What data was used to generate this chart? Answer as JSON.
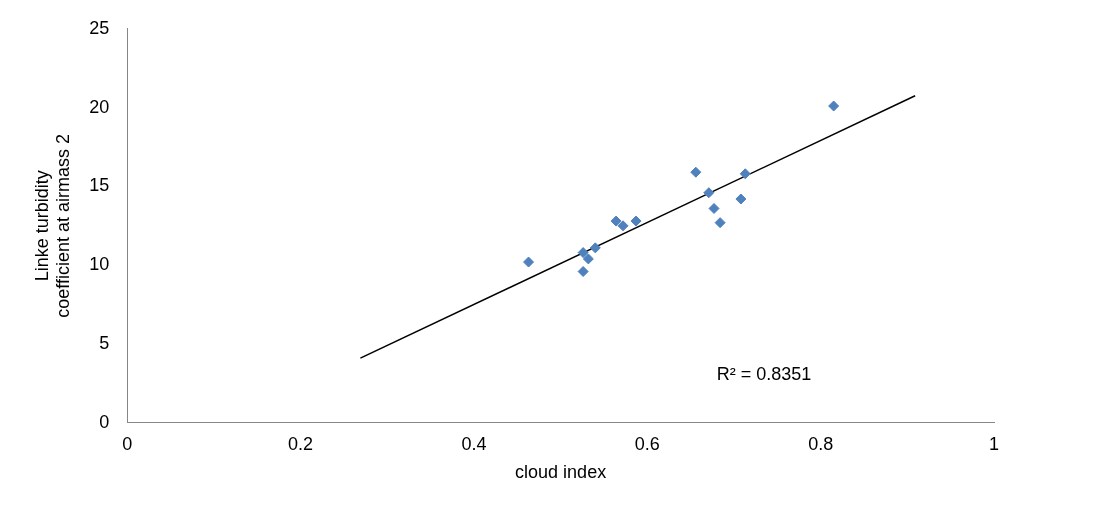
{
  "chart_data": {
    "type": "scatter",
    "xlabel": "cloud index",
    "ylabel": "Linke turbidity coefficient at airmass 2",
    "xlim": [
      0,
      1
    ],
    "xticks": [
      0,
      0.2,
      0.4,
      0.6,
      0.8,
      1
    ],
    "ylim": [
      0,
      25
    ],
    "yticks": [
      0,
      5,
      10,
      15,
      20,
      25
    ],
    "grid": false,
    "legend": false,
    "series": [
      {
        "marker": "diamond",
        "color": "#4f81bd",
        "x": [
          0.463,
          0.526,
          0.526,
          0.532,
          0.54,
          0.564,
          0.572,
          0.587,
          0.656,
          0.713,
          0.671,
          0.677,
          0.684,
          0.708,
          0.815
        ],
        "values": [
          10.2,
          10.8,
          9.6,
          10.4,
          11.1,
          12.8,
          12.5,
          12.8,
          15.9,
          15.8,
          14.6,
          13.6,
          12.7,
          14.2,
          20.1
        ]
      },
      {
        "type": "line",
        "marker": "none",
        "color": "#000000",
        "x": [
          0.269,
          0.909
        ],
        "values": [
          4.1,
          20.75
        ]
      }
    ],
    "annotations": [
      "R² = 0.8351"
    ]
  }
}
